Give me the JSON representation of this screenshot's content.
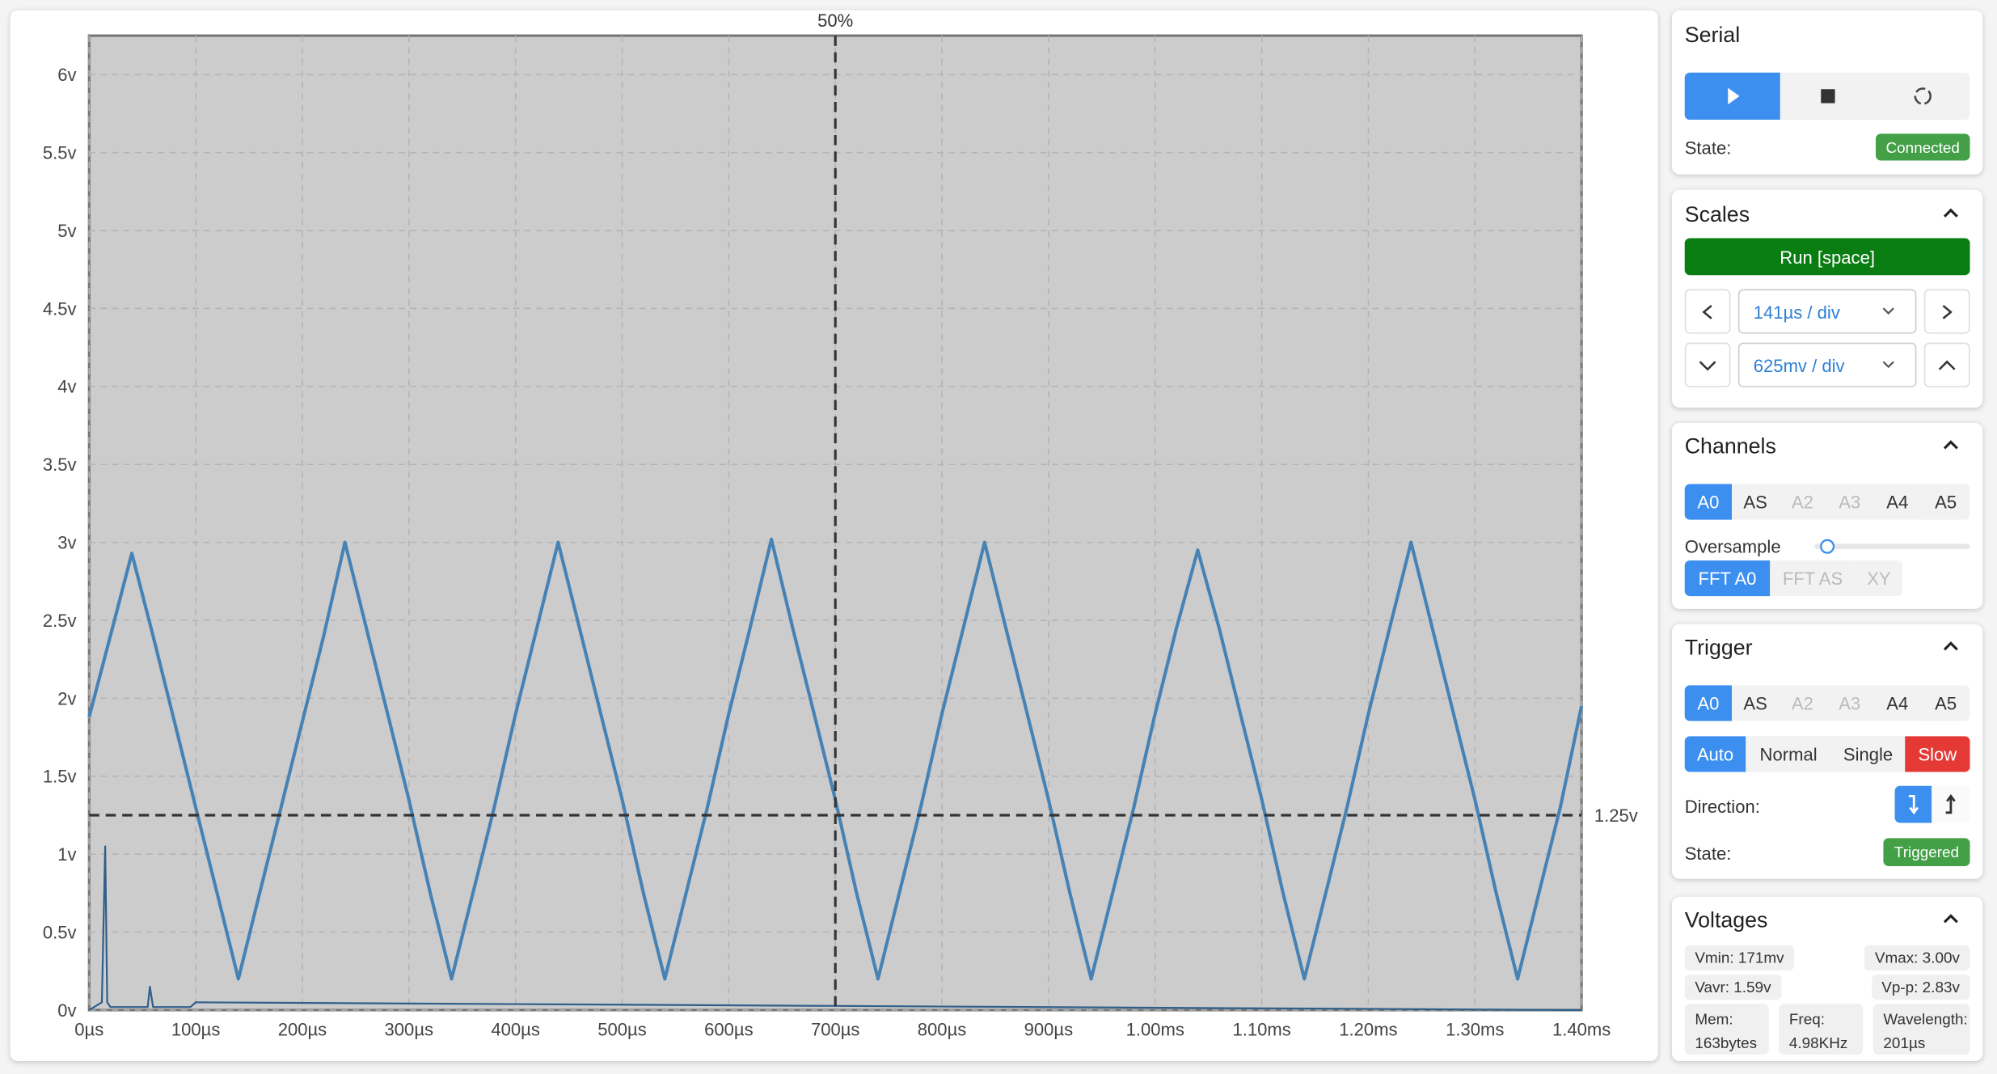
{
  "chart_data": {
    "type": "line",
    "xlim": [
      0,
      1400
    ],
    "ylim": [
      0,
      6.25
    ],
    "xticks": [
      {
        "value": 0,
        "label": "0µs"
      },
      {
        "value": 100,
        "label": "100µs"
      },
      {
        "value": 200,
        "label": "200µs"
      },
      {
        "value": 300,
        "label": "300µs"
      },
      {
        "value": 400,
        "label": "400µs"
      },
      {
        "value": 500,
        "label": "500µs"
      },
      {
        "value": 600,
        "label": "600µs"
      },
      {
        "value": 700,
        "label": "700µs"
      },
      {
        "value": 800,
        "label": "800µs"
      },
      {
        "value": 900,
        "label": "900µs"
      },
      {
        "value": 1000,
        "label": "1.00ms"
      },
      {
        "value": 1100,
        "label": "1.10ms"
      },
      {
        "value": 1200,
        "label": "1.20ms"
      },
      {
        "value": 1300,
        "label": "1.30ms"
      },
      {
        "value": 1400,
        "label": "1.40ms"
      }
    ],
    "yticks": [
      {
        "value": 0,
        "label": "0v"
      },
      {
        "value": 0.5,
        "label": "0.5v"
      },
      {
        "value": 1,
        "label": "1v"
      },
      {
        "value": 1.5,
        "label": "1.5v"
      },
      {
        "value": 2,
        "label": "2v"
      },
      {
        "value": 2.5,
        "label": "2.5v"
      },
      {
        "value": 3,
        "label": "3v"
      },
      {
        "value": 3.5,
        "label": "3.5v"
      },
      {
        "value": 4,
        "label": "4v"
      },
      {
        "value": 4.5,
        "label": "4.5v"
      },
      {
        "value": 5,
        "label": "5v"
      },
      {
        "value": 5.5,
        "label": "5.5v"
      },
      {
        "value": 6,
        "label": "6v"
      }
    ],
    "grid": true,
    "cursor": {
      "value": 700,
      "label": "50%"
    },
    "trigger_level": {
      "value": 1.25,
      "label": "1.25v"
    },
    "series": [
      {
        "color": "#4682b4",
        "x": [
          0,
          20,
          40,
          60,
          80,
          100,
          120,
          140,
          160,
          180,
          200,
          220,
          240,
          260,
          280,
          300,
          320,
          340,
          360,
          380,
          400,
          420,
          440,
          460,
          480,
          500,
          520,
          540,
          560,
          580,
          600,
          620,
          640,
          660,
          680,
          700,
          720,
          740,
          760,
          780,
          800,
          820,
          840,
          860,
          880,
          900,
          920,
          940,
          960,
          980,
          1000,
          1020,
          1040,
          1060,
          1080,
          1100,
          1120,
          1140,
          1160,
          1180,
          1200,
          1220,
          1240,
          1260,
          1280,
          1300,
          1320,
          1340,
          1360,
          1380,
          1400
        ],
        "values": [
          1.88,
          2.4,
          2.93,
          2.4,
          1.85,
          1.3,
          0.75,
          0.2,
          0.75,
          1.3,
          1.85,
          2.4,
          3.0,
          2.45,
          1.9,
          1.35,
          0.75,
          0.2,
          0.75,
          1.3,
          1.9,
          2.45,
          3.0,
          2.45,
          1.9,
          1.35,
          0.75,
          0.2,
          0.75,
          1.3,
          1.9,
          2.45,
          3.02,
          2.45,
          1.9,
          1.35,
          0.75,
          0.2,
          0.75,
          1.3,
          1.9,
          2.45,
          3.0,
          2.45,
          1.9,
          1.35,
          0.75,
          0.2,
          0.75,
          1.3,
          1.9,
          2.45,
          2.95,
          2.45,
          1.9,
          1.35,
          0.75,
          0.2,
          0.75,
          1.3,
          1.9,
          2.45,
          3.0,
          2.45,
          1.9,
          1.35,
          0.75,
          0.2,
          0.75,
          1.3,
          1.95
        ]
      },
      {
        "color": "#2f5f8a",
        "x": [
          0,
          12,
          15,
          17,
          20,
          40,
          55,
          57,
          60,
          95,
          100,
          1400
        ],
        "values": [
          0,
          0.05,
          1.05,
          0.05,
          0.02,
          0.02,
          0.02,
          0.15,
          0.02,
          0.02,
          0.05,
          0
        ]
      }
    ]
  },
  "sidebar": {
    "serial": {
      "title": "Serial",
      "state_label": "State:",
      "state": "Connected"
    },
    "scales": {
      "title": "Scales",
      "run": "Run [space]",
      "time_div": "141µs / div",
      "volt_div": "625mv / div"
    },
    "channels": {
      "title": "Channels",
      "buttons": [
        "A0",
        "AS",
        "A2",
        "A3",
        "A4",
        "A5"
      ],
      "oversample": "Oversample",
      "modes": [
        "FFT A0",
        "FFT AS",
        "XY"
      ]
    },
    "trigger": {
      "title": "Trigger",
      "buttons": [
        "A0",
        "AS",
        "A2",
        "A3",
        "A4",
        "A5"
      ],
      "modes": [
        "Auto",
        "Normal",
        "Single",
        "Slow"
      ],
      "direction_label": "Direction:",
      "state_label": "State:",
      "state": "Triggered"
    },
    "voltages": {
      "title": "Voltages",
      "vmin": "Vmin: 171mv",
      "vmax": "Vmax: 3.00v",
      "vavr": "Vavr: 1.59v",
      "vpp": "Vp-p: 2.83v",
      "stats": [
        {
          "label": "Mem:",
          "value": "163bytes"
        },
        {
          "label": "Freq:",
          "value": "4.98KHz"
        },
        {
          "label": "Wavelength:",
          "value": "201µs"
        }
      ]
    }
  }
}
